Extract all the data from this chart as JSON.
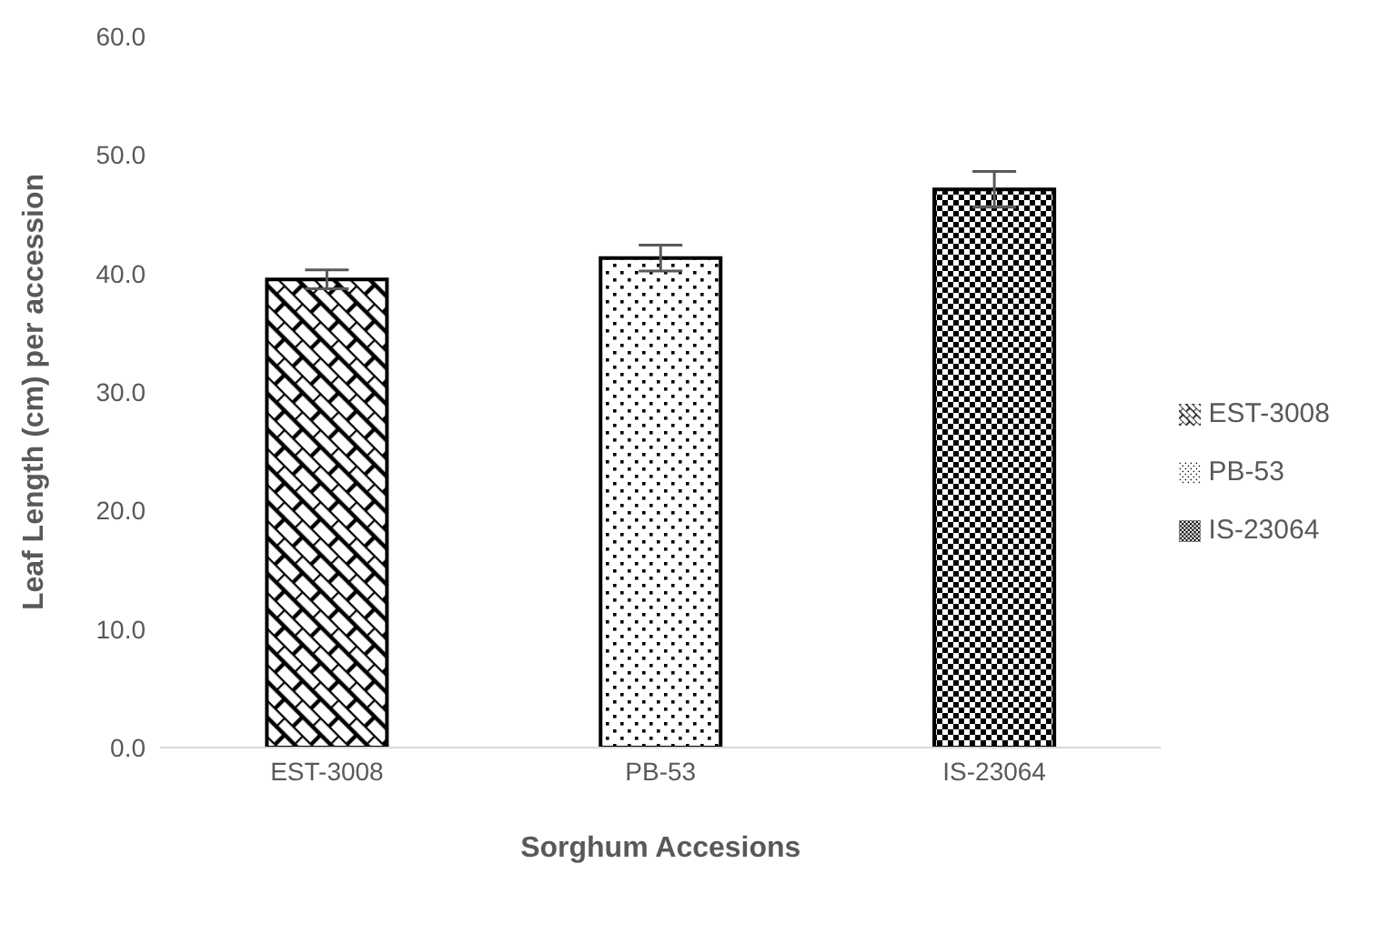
{
  "chart_data": {
    "type": "bar",
    "xlabel": "Sorghum Accesions",
    "ylabel": "Leaf Length  (cm) per accession",
    "categories": [
      "EST-3008",
      "PB-53",
      "IS-23064"
    ],
    "stacked": true,
    "series": [
      {
        "name": "EST-3008",
        "color": "#000000",
        "values": [
          39.5,
          null,
          null
        ],
        "errors": [
          0.8,
          null,
          null
        ]
      },
      {
        "name": "PB-53",
        "color": "#000000",
        "values": [
          null,
          41.3,
          null
        ],
        "errors": [
          null,
          1.1,
          null
        ]
      },
      {
        "name": "IS-23064",
        "color": "#000000",
        "values": [
          null,
          null,
          47.1
        ],
        "errors": [
          null,
          null,
          1.5
        ]
      }
    ],
    "ylim": [
      0,
      60
    ],
    "yticks": [
      {
        "value": 0,
        "label": "0.0"
      },
      {
        "value": 10,
        "label": "10.0"
      },
      {
        "value": 20,
        "label": "20.0"
      },
      {
        "value": 30,
        "label": "30.0"
      },
      {
        "value": 40,
        "label": "40.0"
      },
      {
        "value": 50,
        "label": "50.0"
      },
      {
        "value": 60,
        "label": "60.0"
      }
    ],
    "grid": false,
    "legend": "right"
  }
}
